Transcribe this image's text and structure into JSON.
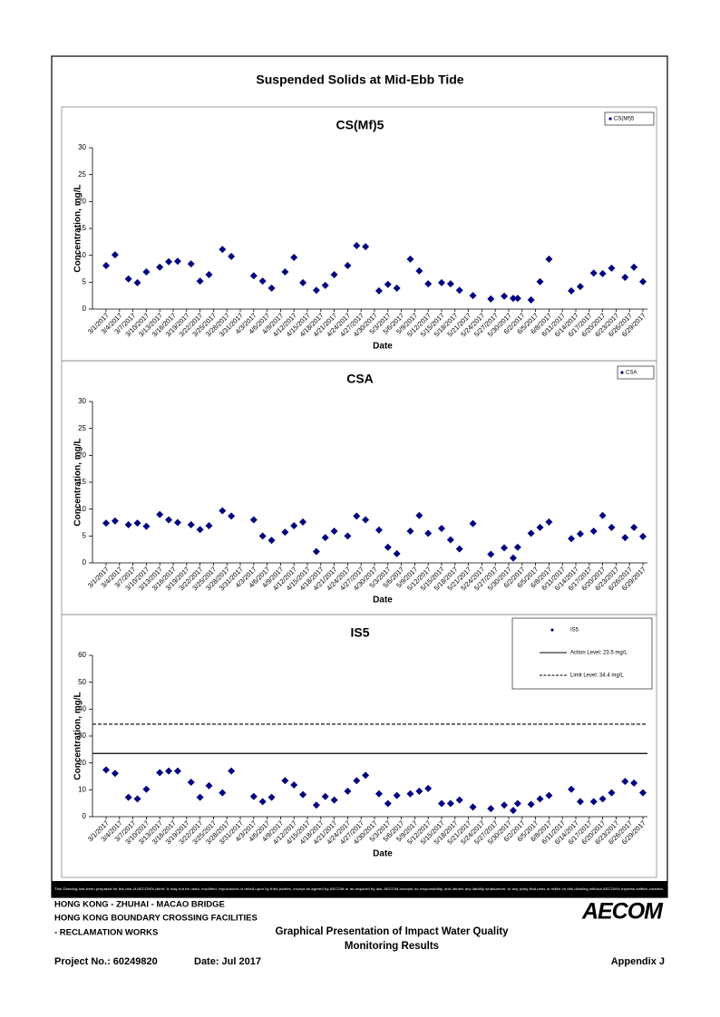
{
  "title": "Suspended Solids at Mid-Ebb Tide",
  "chart_data": [
    {
      "type": "scatter",
      "title": "CS(Mf)5",
      "xlabel": "Date",
      "ylabel": "Concentration, mg/L",
      "x": [
        "3/1/2017",
        "3/3/2017",
        "3/6/2017",
        "3/8/2017",
        "3/10/2017",
        "3/13/2017",
        "3/15/2017",
        "3/17/2017",
        "3/20/2017",
        "3/22/2017",
        "3/24/2017",
        "3/27/2017",
        "3/29/2017",
        "4/3/2017",
        "4/5/2017",
        "4/7/2017",
        "4/10/2017",
        "4/12/2017",
        "4/14/2017",
        "4/17/2017",
        "4/19/2017",
        "4/21/2017",
        "4/24/2017",
        "4/26/2017",
        "4/28/2017",
        "5/1/2017",
        "5/3/2017",
        "5/5/2017",
        "5/8/2017",
        "5/10/2017",
        "5/12/2017",
        "5/15/2017",
        "5/17/2017",
        "5/19/2017",
        "5/22/2017",
        "5/26/2017",
        "5/29/2017",
        "5/31/2017",
        "6/1/2017",
        "6/4/2017",
        "6/6/2017",
        "6/8/2017",
        "6/13/2017",
        "6/15/2017",
        "6/18/2017",
        "6/20/2017",
        "6/22/2017",
        "6/25/2017",
        "6/27/2017",
        "6/29/2017"
      ],
      "series": [
        {
          "name": "CS(Mf)5",
          "color": "#000080",
          "values": [
            8.1,
            10.1,
            5.6,
            4.9,
            6.9,
            7.8,
            8.8,
            8.9,
            8.4,
            5.2,
            6.4,
            11.1,
            9.8,
            6.2,
            5.2,
            3.9,
            6.9,
            9.6,
            4.9,
            3.5,
            4.4,
            6.4,
            8.1,
            11.8,
            11.6,
            3.4,
            4.6,
            3.9,
            9.3,
            7.1,
            4.7,
            4.9,
            4.7,
            3.5,
            2.5,
            1.9,
            2.4,
            2.0,
            2.0,
            1.7,
            5.1,
            9.3,
            3.4,
            4.2,
            6.7,
            6.6,
            7.6,
            5.9,
            7.8,
            5.1
          ]
        }
      ],
      "xlim": [
        "3/1/2017",
        "6/29/2017"
      ],
      "xticks": [
        "3/1/2017",
        "3/4/2017",
        "3/7/2017",
        "3/10/2017",
        "3/13/2017",
        "3/16/2017",
        "3/19/2017",
        "3/22/2017",
        "3/25/2017",
        "3/28/2017",
        "3/31/2017",
        "4/3/2017",
        "4/6/2017",
        "4/9/2017",
        "4/12/2017",
        "4/15/2017",
        "4/18/2017",
        "4/21/2017",
        "4/24/2017",
        "4/27/2017",
        "4/30/2017",
        "5/3/2017",
        "5/6/2017",
        "5/9/2017",
        "5/12/2017",
        "5/15/2017",
        "5/18/2017",
        "5/21/2017",
        "5/24/2017",
        "5/27/2017",
        "5/30/2017",
        "6/2/2017",
        "6/5/2017",
        "6/8/2017",
        "6/11/2017",
        "6/14/2017",
        "6/17/2017",
        "6/20/2017",
        "6/23/2017",
        "6/26/2017",
        "6/29/2017"
      ],
      "ylim": [
        0,
        30
      ],
      "yticks": [
        0,
        5,
        10,
        15,
        20,
        25,
        30
      ],
      "legend": "top-right"
    },
    {
      "type": "scatter",
      "title": "CSA",
      "xlabel": "Date",
      "ylabel": "Concentration, mg/L",
      "x": [
        "3/1/2017",
        "3/3/2017",
        "3/6/2017",
        "3/8/2017",
        "3/10/2017",
        "3/13/2017",
        "3/15/2017",
        "3/17/2017",
        "3/20/2017",
        "3/22/2017",
        "3/24/2017",
        "3/27/2017",
        "3/29/2017",
        "4/3/2017",
        "4/5/2017",
        "4/7/2017",
        "4/10/2017",
        "4/12/2017",
        "4/14/2017",
        "4/17/2017",
        "4/19/2017",
        "4/21/2017",
        "4/24/2017",
        "4/26/2017",
        "4/28/2017",
        "5/1/2017",
        "5/3/2017",
        "5/5/2017",
        "5/8/2017",
        "5/10/2017",
        "5/12/2017",
        "5/15/2017",
        "5/17/2017",
        "5/19/2017",
        "5/22/2017",
        "5/26/2017",
        "5/29/2017",
        "5/31/2017",
        "6/1/2017",
        "6/4/2017",
        "6/6/2017",
        "6/8/2017",
        "6/13/2017",
        "6/15/2017",
        "6/18/2017",
        "6/20/2017",
        "6/22/2017",
        "6/25/2017",
        "6/27/2017",
        "6/29/2017"
      ],
      "series": [
        {
          "name": "CSA",
          "color": "#000080",
          "values": [
            7.4,
            7.8,
            7.1,
            7.4,
            6.8,
            9.0,
            8.0,
            7.5,
            7.1,
            6.2,
            6.9,
            9.7,
            8.7,
            8.0,
            5.0,
            4.2,
            5.7,
            6.9,
            7.6,
            2.1,
            4.7,
            5.9,
            5.0,
            8.7,
            8.0,
            6.1,
            2.9,
            1.7,
            5.9,
            8.8,
            5.5,
            6.4,
            4.3,
            2.6,
            7.3,
            1.6,
            2.8,
            0.9,
            2.9,
            5.5,
            6.6,
            7.6,
            4.5,
            5.4,
            5.9,
            8.8,
            6.6,
            4.7,
            6.6,
            4.9
          ]
        }
      ],
      "xlim": [
        "3/1/2017",
        "6/29/2017"
      ],
      "xticks": [
        "3/1/2017",
        "3/4/2017",
        "3/7/2017",
        "3/10/2017",
        "3/13/2017",
        "3/16/2017",
        "3/19/2017",
        "3/22/2017",
        "3/25/2017",
        "3/28/2017",
        "3/31/2017",
        "4/3/2017",
        "4/6/2017",
        "4/9/2017",
        "4/12/2017",
        "4/15/2017",
        "4/18/2017",
        "4/21/2017",
        "4/24/2017",
        "4/27/2017",
        "4/30/2017",
        "5/3/2017",
        "5/6/2017",
        "5/9/2017",
        "5/12/2017",
        "5/15/2017",
        "5/18/2017",
        "5/21/2017",
        "5/24/2017",
        "5/27/2017",
        "5/30/2017",
        "6/2/2017",
        "6/5/2017",
        "6/8/2017",
        "6/11/2017",
        "6/14/2017",
        "6/17/2017",
        "6/20/2017",
        "6/23/2017",
        "6/26/2017",
        "6/29/2017"
      ],
      "ylim": [
        0,
        30
      ],
      "yticks": [
        0,
        5,
        10,
        15,
        20,
        25,
        30
      ],
      "legend": "top-right"
    },
    {
      "type": "scatter",
      "title": "IS5",
      "xlabel": "Date",
      "ylabel": "Concentration, mg/L",
      "x": [
        "3/1/2017",
        "3/3/2017",
        "3/6/2017",
        "3/8/2017",
        "3/10/2017",
        "3/13/2017",
        "3/15/2017",
        "3/17/2017",
        "3/20/2017",
        "3/22/2017",
        "3/24/2017",
        "3/27/2017",
        "3/29/2017",
        "4/3/2017",
        "4/5/2017",
        "4/7/2017",
        "4/10/2017",
        "4/12/2017",
        "4/14/2017",
        "4/17/2017",
        "4/19/2017",
        "4/21/2017",
        "4/24/2017",
        "4/26/2017",
        "4/28/2017",
        "5/1/2017",
        "5/3/2017",
        "5/5/2017",
        "5/8/2017",
        "5/10/2017",
        "5/12/2017",
        "5/15/2017",
        "5/17/2017",
        "5/19/2017",
        "5/22/2017",
        "5/26/2017",
        "5/29/2017",
        "5/31/2017",
        "6/1/2017",
        "6/4/2017",
        "6/6/2017",
        "6/8/2017",
        "6/13/2017",
        "6/15/2017",
        "6/18/2017",
        "6/20/2017",
        "6/22/2017",
        "6/25/2017",
        "6/27/2017",
        "6/29/2017"
      ],
      "series": [
        {
          "name": "IS5",
          "color": "#000080",
          "values": [
            17.4,
            16.1,
            7.2,
            6.6,
            10.2,
            16.4,
            17.0,
            17.0,
            12.8,
            7.2,
            11.5,
            8.9,
            17.0,
            7.5,
            5.6,
            7.2,
            13.4,
            11.8,
            8.2,
            4.3,
            7.5,
            6.2,
            9.5,
            13.4,
            15.4,
            8.5,
            4.9,
            7.9,
            8.5,
            9.5,
            10.5,
            4.9,
            4.9,
            6.2,
            3.6,
            3.0,
            4.3,
            2.3,
            4.9,
            4.6,
            6.6,
            7.9,
            10.2,
            5.6,
            5.6,
            6.6,
            8.9,
            13.1,
            12.5,
            8.9
          ]
        }
      ],
      "lines": [
        {
          "name": "Action Level: 23.5 mg/L",
          "value": 23.5,
          "style": "solid",
          "color": "#000000"
        },
        {
          "name": "Limit Level: 34.4 mg/L",
          "value": 34.4,
          "style": "dashed",
          "color": "#000000"
        }
      ],
      "xlim": [
        "3/1/2017",
        "6/29/2017"
      ],
      "xticks": [
        "3/1/2017",
        "3/4/2017",
        "3/7/2017",
        "3/10/2017",
        "3/13/2017",
        "3/16/2017",
        "3/19/2017",
        "3/22/2017",
        "3/25/2017",
        "3/28/2017",
        "3/31/2017",
        "4/3/2017",
        "4/6/2017",
        "4/9/2017",
        "4/12/2017",
        "4/15/2017",
        "4/18/2017",
        "4/21/2017",
        "4/24/2017",
        "4/27/2017",
        "4/30/2017",
        "5/3/2017",
        "5/6/2017",
        "5/9/2017",
        "5/12/2017",
        "5/15/2017",
        "5/18/2017",
        "5/21/2017",
        "5/24/2017",
        "5/27/2017",
        "5/30/2017",
        "6/2/2017",
        "6/5/2017",
        "6/8/2017",
        "6/11/2017",
        "6/14/2017",
        "6/17/2017",
        "6/20/2017",
        "6/23/2017",
        "6/26/2017",
        "6/29/2017"
      ],
      "ylim": [
        0,
        60
      ],
      "yticks": [
        0,
        10,
        20,
        30,
        40,
        50,
        60
      ],
      "legend": "top-right"
    }
  ],
  "footer": {
    "disclaimer": "This Drawing has been prepared for the use of AECOM's client. It may not be used, modified, reproduced or relied upon by third parties, except as agreed by AECOM or as required by law. AECOM accepts no responsibility, and denies any liability whatsoever, to any party that uses or relies on this drawing without AECOM's express written consent.",
    "project_lines": [
      "HONG KONG - ZHUHAI - MACAO BRIDGE",
      "HONG KONG BOUNDARY CROSSING FACILITIES",
      "- RECLAMATION WORKS"
    ],
    "doc_title": [
      "Graphical Presentation of Impact Water Quality",
      "Monitoring Results"
    ],
    "project_no": "Project No.: 60249820",
    "date": "Date: Jul 2017",
    "appendix": "Appendix J",
    "logo": "AECOM"
  }
}
